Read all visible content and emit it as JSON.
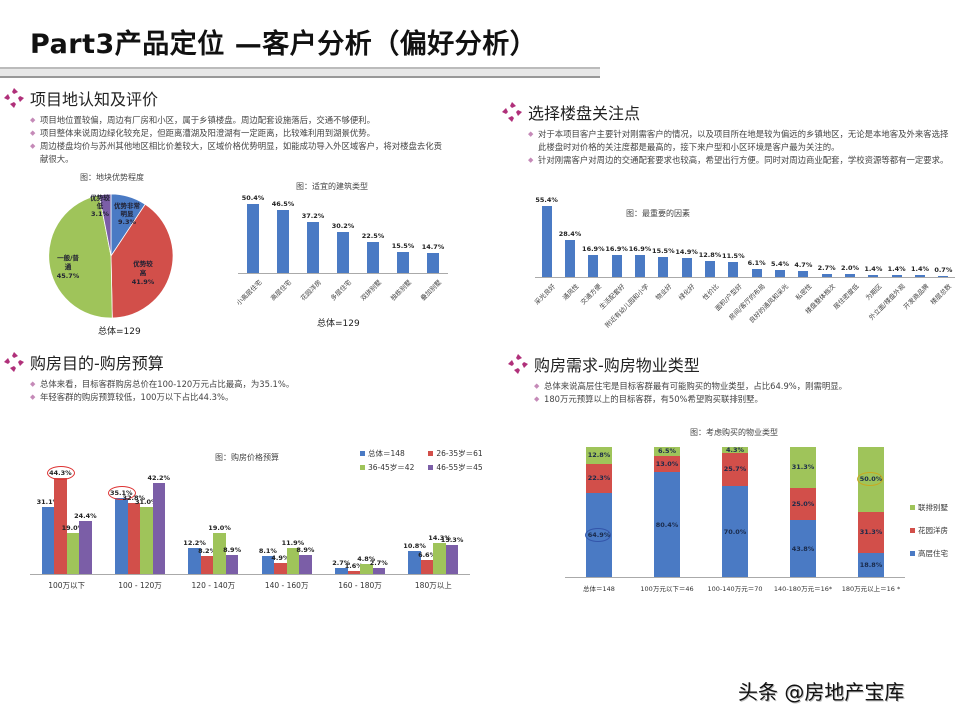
{
  "page": {
    "title": "Part3产品定位 —客户分析（偏好分析）",
    "watermark": "头条 @房地产宝库"
  },
  "colors": {
    "blue": "#4a7ac4",
    "red": "#d24f4a",
    "green": "#9fc45a",
    "purple": "#7b5ea7",
    "icon": "#b0307a"
  },
  "sections": {
    "location": {
      "heading": "项目地认知及评价",
      "bullets": [
        "项目地位置较偏，周边有厂房和小区，属于乡镇楼盘。周边配套设施落后，交通不够便利。",
        "项目整体来说周边绿化较充足，但距离漕湖及阳澄湖有一定距离，比较难利用到湖景优势。",
        "周边楼盘均价与苏州其他地区相比价差较大，区域价格优势明显，如能成功导入外区域客户，将对楼盘去化贡献很大。"
      ]
    },
    "focus": {
      "heading": "选择楼盘关注点",
      "bullets": [
        "对于本项目客户主要针对刚需客户的情况，以及项目所在地是较为偏远的乡镇地区，无论是本地客及外来客选择此楼盘时对价格的关注度都是最高的，接下来户型和小区环境是客户最为关注的。",
        "针对刚需客户对周边的交通配套要求也较高，希望出行方便。同时对周边商业配套，学校资源等都有一定要求。"
      ]
    },
    "budget": {
      "heading": "购房目的-购房预算",
      "bullets": [
        "总体来看，目标客群购房总价在100-120万元占比最高，为35.1%。",
        "年轻客群的购房预算较低，100万以下占比44.3%。"
      ]
    },
    "property": {
      "heading": "购房需求-购房物业类型",
      "bullets": [
        "总体来说高层住宅是目标客群最有可能购买的物业类型，占比64.9%，刚需明显。",
        "180万元预算以上的目标客群，有50%希望购买联排别墅。"
      ]
    }
  },
  "chart_data": [
    {
      "type": "pie",
      "title": "图：地块优势程度",
      "note": "总体=129",
      "labels": [
        "优势非常明显",
        "优势较高",
        "一般/普通",
        "优势较低"
      ],
      "values": [
        9.3,
        41.9,
        45.7,
        3.1
      ],
      "display": [
        "优势非常\n明显\n9.3%",
        "优势较\n高\n41.9%",
        "一般/普\n通\n45.7%",
        "优势较\n低\n3.1%"
      ],
      "colors": [
        "#4a7ac4",
        "#d24f4a",
        "#9fc45a",
        "#7b5ea7"
      ]
    },
    {
      "type": "bar",
      "title": "图：适宜的建筑类型",
      "note": "总体=129",
      "categories": [
        "小高层住宅",
        "高层住宅",
        "花园洋房",
        "多层住宅",
        "双拼别墅",
        "独栋别墅",
        "叠加别墅"
      ],
      "values": [
        50.4,
        46.5,
        37.2,
        30.2,
        22.5,
        15.5,
        14.7
      ],
      "labels": [
        "50.4%",
        "46.5%",
        "37.2%",
        "30.2%",
        "22.5%",
        "15.5%",
        "14.7%"
      ],
      "ylim": [
        0,
        55
      ]
    },
    {
      "type": "bar",
      "title": "图：最重要的因素",
      "categories": [
        "采光良好",
        "通风性",
        "交通方便",
        "生活配套好",
        "附近有幼儿园和小学",
        "物业好",
        "绿化好",
        "性价比",
        "面积/户型好",
        "房间/客厅的布局",
        "良好的通风和采光",
        "私密性",
        "楼盘整体档次",
        "居住密度低",
        "为期区",
        "外立面/楼盘外观",
        "开发商品牌",
        "楼层总数"
      ],
      "values": [
        55.4,
        28.4,
        16.9,
        16.9,
        16.9,
        15.5,
        14.9,
        12.8,
        11.5,
        6.1,
        5.4,
        4.7,
        2.7,
        2.0,
        1.4,
        1.4,
        1.4,
        0.7
      ],
      "labels": [
        "55.4%",
        "28.4%",
        "16.9%",
        "16.9%",
        "16.9%",
        "15.5%",
        "14.9%",
        "12.8%",
        "11.5%",
        "6.1%",
        "5.4%",
        "4.7%",
        "2.7%",
        "2.0%",
        "1.4%",
        "1.4%",
        "1.4%",
        "0.7%"
      ],
      "ylim": [
        0,
        56
      ]
    },
    {
      "type": "bar",
      "title": "图：购房价格预算",
      "categories": [
        "100万以下",
        "100 - 120万",
        "120 - 140万",
        "140 - 160万",
        "160 - 180万",
        "180万以上"
      ],
      "series": [
        {
          "name": "总体＝148",
          "color": "#4a7ac4",
          "values": [
            31.1,
            35.1,
            12.2,
            8.1,
            2.7,
            10.8
          ]
        },
        {
          "name": "26-35岁＝61",
          "color": "#d24f4a",
          "values": [
            44.3,
            32.8,
            8.2,
            4.9,
            1.6,
            6.6
          ]
        },
        {
          "name": "36-45岁＝42",
          "color": "#9fc45a",
          "values": [
            19.0,
            31.0,
            19.0,
            11.9,
            4.8,
            14.3
          ]
        },
        {
          "name": "46-55岁＝45",
          "color": "#7b5ea7",
          "values": [
            24.4,
            42.2,
            8.9,
            8.9,
            2.7,
            13.3
          ]
        }
      ],
      "highlighted": [
        "44.3%",
        "35.1%"
      ],
      "ylim": [
        0,
        48
      ]
    },
    {
      "type": "bar",
      "stacked": true,
      "title": "图：考虑购买的物业类型",
      "categories": [
        "总体＝148",
        "100万元以下＝46",
        "100-140万元＝70",
        "140-180万元＝16*",
        "180万元以上＝16 *"
      ],
      "series": [
        {
          "name": "高层住宅",
          "color": "#4a7ac4",
          "values": [
            64.9,
            80.4,
            70.0,
            43.8,
            18.8
          ]
        },
        {
          "name": "花园洋房",
          "color": "#d24f4a",
          "values": [
            22.3,
            13.0,
            25.7,
            25.0,
            31.3
          ]
        },
        {
          "name": "联排别墅",
          "color": "#9fc45a",
          "values": [
            12.8,
            6.5,
            4.3,
            31.3,
            50.0
          ]
        }
      ],
      "legend": [
        "联排别墅",
        "花园洋房",
        "高层住宅"
      ],
      "highlighted": [
        "64.9%",
        "50.0%"
      ],
      "ylim": [
        0,
        100
      ]
    }
  ]
}
